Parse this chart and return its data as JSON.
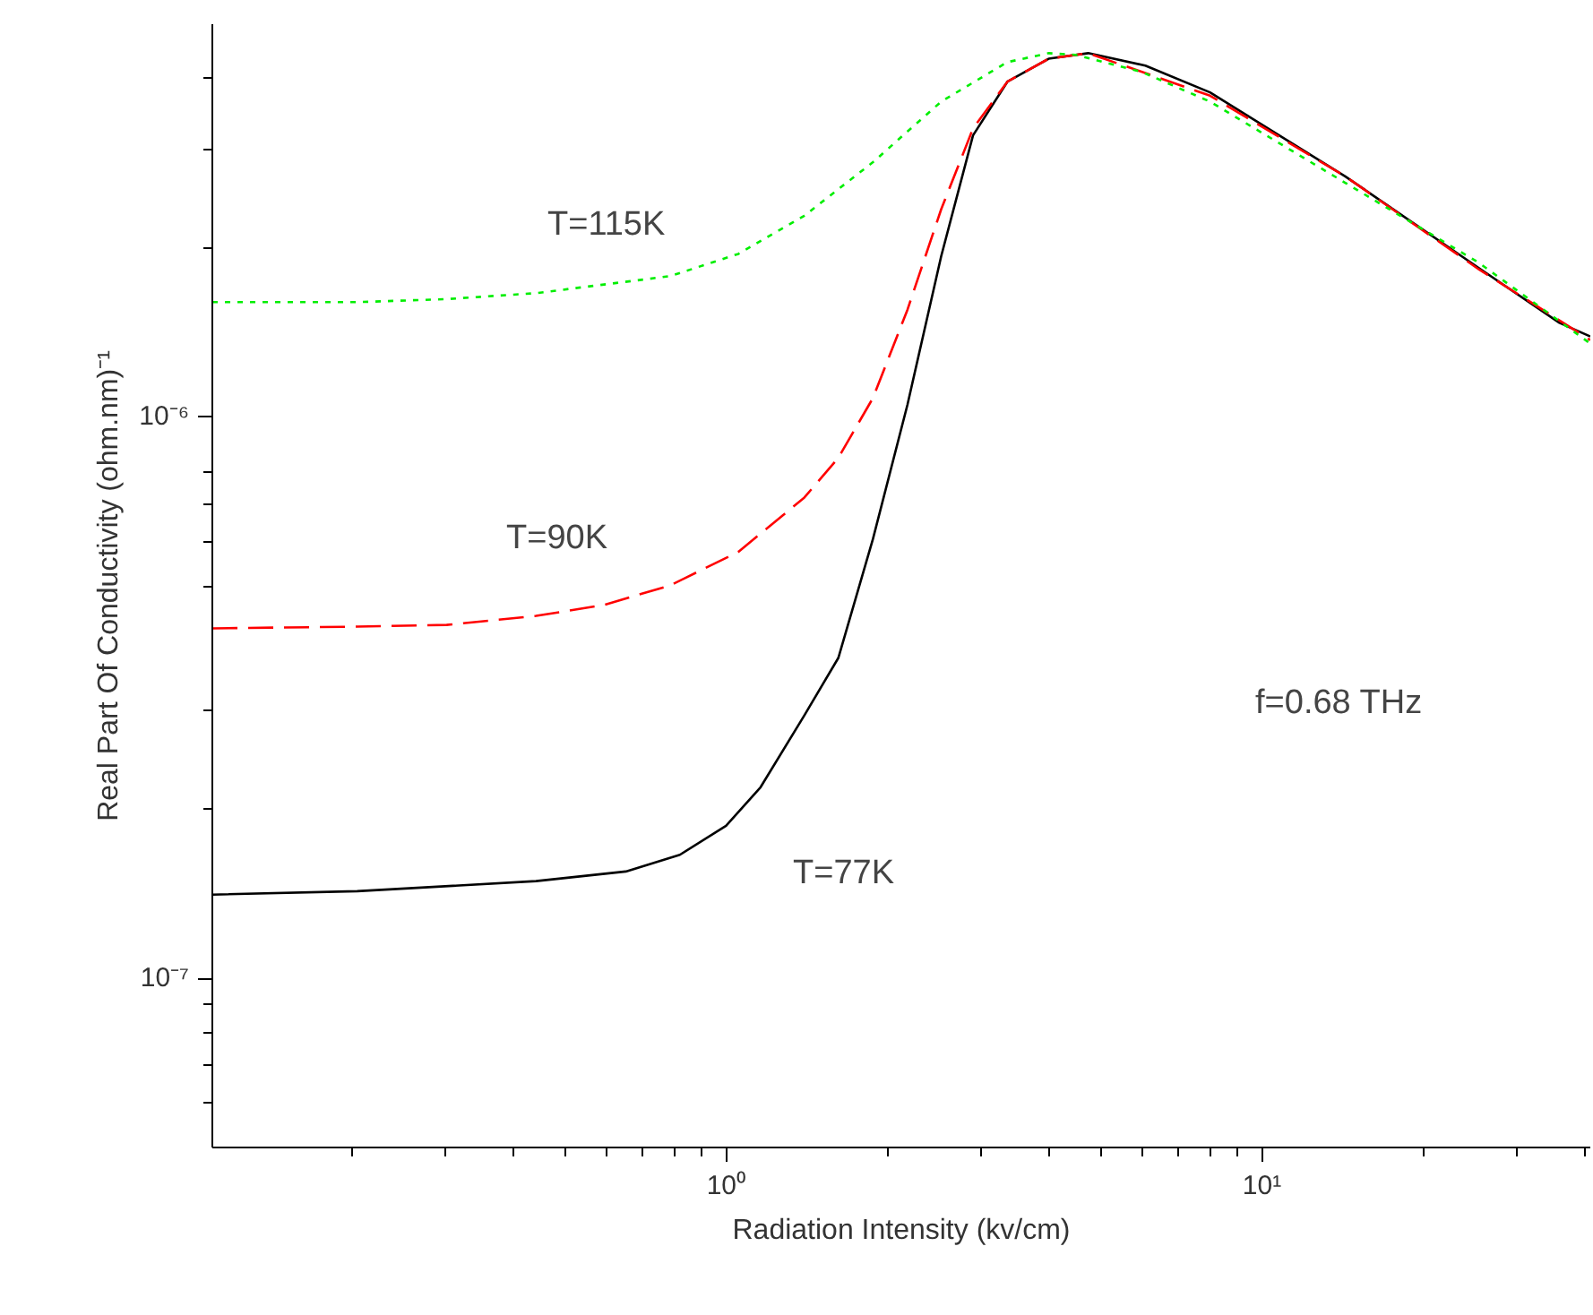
{
  "chart_data": {
    "type": "line",
    "xlabel": "Radiation Intensity (kv/cm)",
    "ylabel": "Real Part Of Conductivity (ohm.nm)⁻¹",
    "log": "xy",
    "grid": false,
    "xlim": [
      0.11,
      41
    ],
    "ylim": [
      5e-08,
      5e-06
    ],
    "xticks": [
      {
        "value": 0.2,
        "label": null
      },
      {
        "value": 0.3,
        "label": null
      },
      {
        "value": 0.4,
        "label": null
      },
      {
        "value": 0.5,
        "label": null
      },
      {
        "value": 0.6,
        "label": null
      },
      {
        "value": 0.7,
        "label": null
      },
      {
        "value": 0.8,
        "label": null
      },
      {
        "value": 0.9,
        "label": null
      },
      {
        "value": 1,
        "label": "10⁰"
      },
      {
        "value": 2,
        "label": null
      },
      {
        "value": 3,
        "label": null
      },
      {
        "value": 4,
        "label": null
      },
      {
        "value": 5,
        "label": null
      },
      {
        "value": 6,
        "label": null
      },
      {
        "value": 7,
        "label": null
      },
      {
        "value": 8,
        "label": null
      },
      {
        "value": 9,
        "label": null
      },
      {
        "value": 10,
        "label": "10¹"
      },
      {
        "value": 20,
        "label": null
      },
      {
        "value": 30,
        "label": null
      },
      {
        "value": 40,
        "label": null
      }
    ],
    "yticks": [
      {
        "value": 6e-08,
        "label": null
      },
      {
        "value": 7e-08,
        "label": null
      },
      {
        "value": 8e-08,
        "label": null
      },
      {
        "value": 9e-08,
        "label": null
      },
      {
        "value": 1e-07,
        "label": "10⁻⁷"
      },
      {
        "value": 2e-07,
        "label": null
      },
      {
        "value": 3e-07,
        "label": null
      },
      {
        "value": 5e-07,
        "label": null
      },
      {
        "value": 6e-07,
        "label": null
      },
      {
        "value": 7e-07,
        "label": null
      },
      {
        "value": 8e-07,
        "label": null
      },
      {
        "value": 1e-06,
        "label": "10⁻⁶"
      },
      {
        "value": 2e-06,
        "label": null
      },
      {
        "value": 3e-06,
        "label": null
      },
      {
        "value": 4e-06,
        "label": null
      }
    ],
    "series": [
      {
        "color": "#000000",
        "line_style": "solid",
        "x": [
          0.11,
          0.205,
          0.442,
          0.65,
          0.82,
          1.0,
          1.16,
          1.4,
          1.62,
          1.88,
          2.18,
          2.52,
          2.89,
          3.35,
          4.0,
          4.74,
          6.06,
          8.0,
          14.3,
          25.4,
          35.9,
          41
        ],
        "values": [
          1.41e-07,
          1.43e-07,
          1.49e-07,
          1.55e-07,
          1.66e-07,
          1.87e-07,
          2.19e-07,
          2.94e-07,
          3.72e-07,
          6.06e-07,
          1.05e-06,
          1.93e-06,
          3.17e-06,
          3.95e-06,
          4.34e-06,
          4.44e-06,
          4.22e-06,
          3.78e-06,
          2.68e-06,
          1.84e-06,
          1.47e-06,
          1.39e-06
        ]
      },
      {
        "color": "#ff0000",
        "line_style": "dashed",
        "x": [
          0.11,
          0.205,
          0.301,
          0.442,
          0.59,
          0.787,
          1.055,
          1.4,
          1.62,
          1.88,
          2.18,
          2.52,
          2.89,
          3.35,
          4.0,
          4.74,
          8.0,
          14.3,
          25.4,
          41
        ],
        "values": [
          4.2e-07,
          4.23e-07,
          4.26e-07,
          4.42e-07,
          4.62e-07,
          5.01e-07,
          5.75e-07,
          7.18e-07,
          8.45e-07,
          1.08e-06,
          1.55e-06,
          2.34e-06,
          3.26e-06,
          3.95e-06,
          4.34e-06,
          4.44e-06,
          3.73e-06,
          2.68e-06,
          1.83e-06,
          1.37e-06
        ]
      },
      {
        "color": "#00ee00",
        "line_style": "dotted",
        "x": [
          0.11,
          0.205,
          0.301,
          0.442,
          0.787,
          1.055,
          1.4,
          1.88,
          2.52,
          3.35,
          4.0,
          4.49,
          5.97,
          8.0,
          14.3,
          25.4,
          41
        ],
        "values": [
          1.6e-06,
          1.6e-06,
          1.62e-06,
          1.66e-06,
          1.78e-06,
          1.95e-06,
          2.28e-06,
          2.84e-06,
          3.64e-06,
          4.28e-06,
          4.44e-06,
          4.41e-06,
          4.11e-06,
          3.64e-06,
          2.61e-06,
          1.88e-06,
          1.35e-06
        ]
      }
    ],
    "annotations": [
      "T=115K",
      "T=90K",
      "T=77K",
      "f=0.68 THz"
    ]
  }
}
